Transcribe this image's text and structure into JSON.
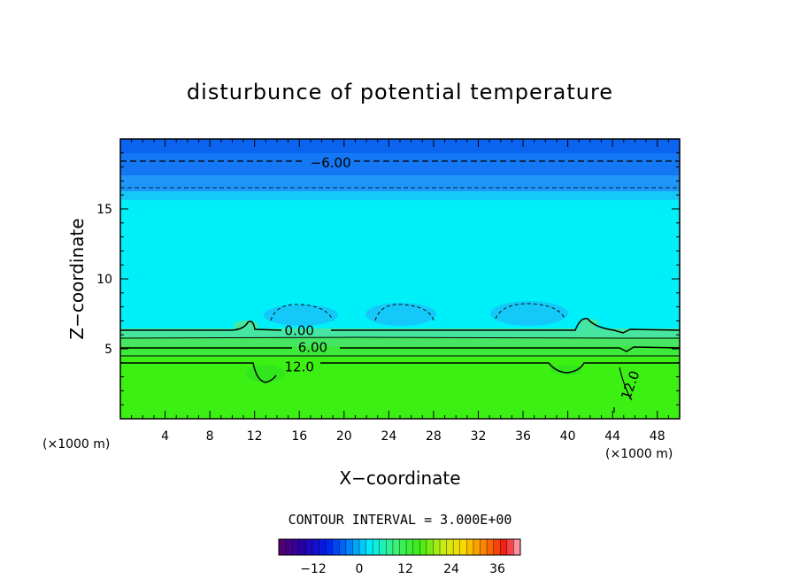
{
  "chart_data": {
    "type": "heatmap",
    "title": "disturbunce of potential temperature",
    "xlabel": "X−coordinate",
    "ylabel": "Z−coordinate",
    "x_unit": "(×1000 m)",
    "z_unit": "(×1000 m)",
    "xlim": [
      0,
      50
    ],
    "ylim": [
      0,
      20
    ],
    "x_ticks": [
      4,
      8,
      12,
      16,
      20,
      24,
      28,
      32,
      36,
      40,
      44,
      48
    ],
    "y_ticks": [
      5,
      10,
      15
    ],
    "contour_interval_text": "CONTOUR INTERVAL = 3.000E+00",
    "contour_labels": [
      {
        "text": "−6.00",
        "x": 18.8,
        "z": 18.3
      },
      {
        "text": "0.00",
        "x": 16,
        "z": 6.3
      },
      {
        "text": "6.00",
        "x": 17.2,
        "z": 5.1
      },
      {
        "text": "12.0",
        "x": 16,
        "z": 3.7
      },
      {
        "text": "12.0",
        "x": 45.6,
        "z": 2.4
      }
    ],
    "contour_levels_solid": [
      0,
      3,
      6,
      9,
      12
    ],
    "contour_levels_dashed": [
      -3,
      -6
    ],
    "colorbar": {
      "min": -21,
      "max": 42,
      "ticks": [
        -12,
        0,
        12,
        24,
        36
      ]
    },
    "colors": {
      "band_top": "#0a64f0",
      "band_2": "#1478f5",
      "band_3": "#1e96fa",
      "band_4": "#14c8fa",
      "main_cyan": "#00f0fa",
      "ground_green": "#3cf014",
      "ground_green_2": "#32e61e",
      "low_green": "#46e650"
    }
  }
}
